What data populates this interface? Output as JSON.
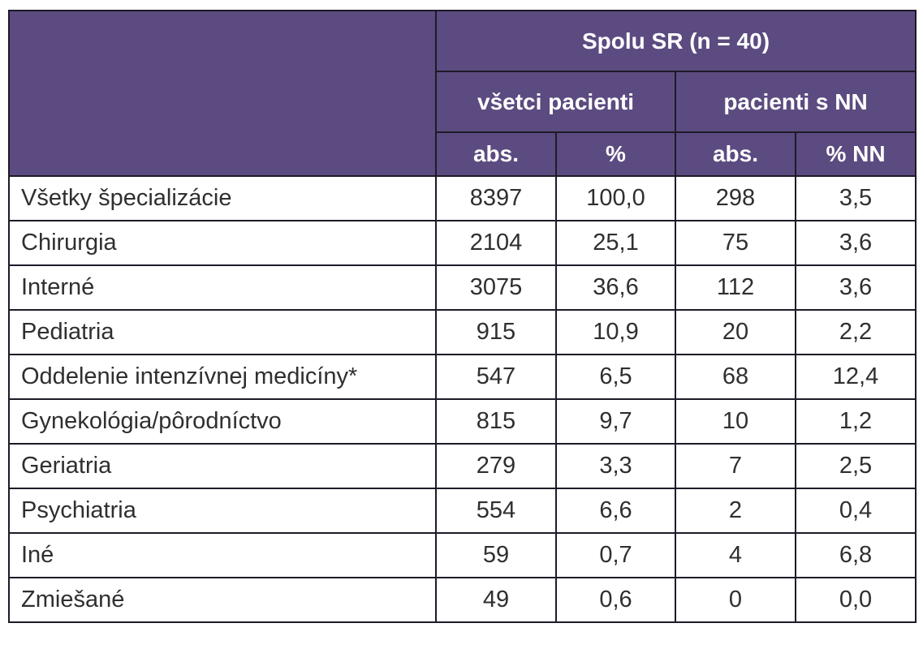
{
  "header": {
    "group_title": "Spolu SR (n = 40)",
    "subgroups": [
      "všetci pacienti",
      "pacienti s NN"
    ],
    "columns": [
      "abs.",
      "%",
      "abs.",
      "% NN"
    ]
  },
  "rows": [
    {
      "label": "Všetky špecializácie",
      "abs1": "8397",
      "pct1": "100,0",
      "abs2": "298",
      "pct2": "3,5"
    },
    {
      "label": "Chirurgia",
      "abs1": "2104",
      "pct1": "25,1",
      "abs2": "75",
      "pct2": "3,6"
    },
    {
      "label": "Interné",
      "abs1": "3075",
      "pct1": "36,6",
      "abs2": "112",
      "pct2": "3,6"
    },
    {
      "label": "Pediatria",
      "abs1": "915",
      "pct1": "10,9",
      "abs2": "20",
      "pct2": "2,2"
    },
    {
      "label": "Oddelenie intenzívnej medicíny*",
      "abs1": "547",
      "pct1": "6,5",
      "abs2": "68",
      "pct2": "12,4"
    },
    {
      "label": "Gynekológia/pôrodníctvo",
      "abs1": "815",
      "pct1": "9,7",
      "abs2": "10",
      "pct2": "1,2"
    },
    {
      "label": "Geriatria",
      "abs1": "279",
      "pct1": "3,3",
      "abs2": "7",
      "pct2": "2,5"
    },
    {
      "label": "Psychiatria",
      "abs1": "554",
      "pct1": "6,6",
      "abs2": "2",
      "pct2": "0,4"
    },
    {
      "label": "Iné",
      "abs1": "59",
      "pct1": "0,7",
      "abs2": "4",
      "pct2": "6,8"
    },
    {
      "label": "Zmiešané",
      "abs1": "49",
      "pct1": "0,6",
      "abs2": "0",
      "pct2": "0,0"
    }
  ],
  "colors": {
    "header_bg": "#5c4b80",
    "header_text": "#ffffff",
    "border": "#1e1a28",
    "body_text": "#2f2f2f"
  }
}
